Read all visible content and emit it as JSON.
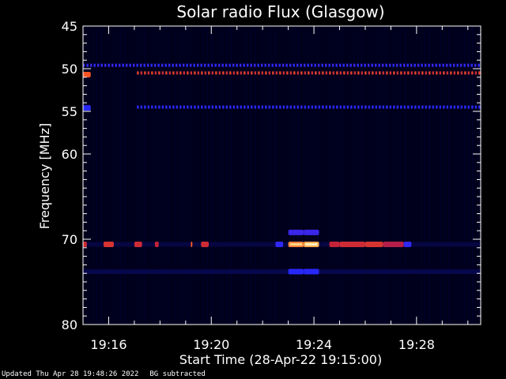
{
  "chart_data": {
    "type": "heatmap",
    "title": "Solar radio Flux (Glasgow)",
    "xlabel": "Start Time (28-Apr-22 19:15:00)",
    "ylabel": "Frequency [MHz]",
    "x_start_min": 0,
    "x_end_min": 15.5,
    "x_ticks": [
      {
        "min": 1,
        "label": "19:16"
      },
      {
        "min": 5,
        "label": "19:20"
      },
      {
        "min": 9,
        "label": "19:24"
      },
      {
        "min": 13,
        "label": "19:28"
      }
    ],
    "ylim": [
      45,
      80
    ],
    "y_ticks": [
      {
        "mhz": 45,
        "label": "45"
      },
      {
        "mhz": 50,
        "label": "50"
      },
      {
        "mhz": 55,
        "label": "55"
      },
      {
        "mhz": 60,
        "label": "60"
      },
      {
        "mhz": 70,
        "label": "70"
      },
      {
        "mhz": 80,
        "label": "80"
      }
    ],
    "background_color": "#00001c",
    "colormap": [
      "#000010",
      "#1010a0",
      "#2a2aff",
      "#6a1aa0",
      "#c0203a",
      "#ff5a20",
      "#ffb050",
      "#fff0c0"
    ],
    "bands": [
      {
        "name": "49.5 MHz dotted band",
        "mhz": 49.6,
        "dotted": true,
        "intensity": 0.3,
        "start": 0,
        "end": 15.5
      },
      {
        "name": "50.5 MHz band",
        "mhz": 50.5,
        "dotted": true,
        "intensity": 0.62,
        "start": 2.1,
        "end": 15.5
      },
      {
        "name": "54.5 MHz band",
        "mhz": 54.5,
        "dotted": true,
        "intensity": 0.3,
        "start": 2.1,
        "end": 15.5
      },
      {
        "name": "70.5 MHz band",
        "mhz": 70.6,
        "dotted": false,
        "intensity": 0.05,
        "start": 0,
        "end": 15.5
      },
      {
        "name": "74 MHz band",
        "mhz": 73.8,
        "dotted": false,
        "intensity": 0.06,
        "start": 0,
        "end": 15.5
      }
    ],
    "bursts": [
      {
        "start": 0.0,
        "end": 0.15,
        "mhz": 70.6,
        "intensity": 0.6
      },
      {
        "start": 0.8,
        "end": 1.2,
        "mhz": 70.6,
        "intensity": 0.62
      },
      {
        "start": 2.0,
        "end": 2.3,
        "mhz": 70.6,
        "intensity": 0.6
      },
      {
        "start": 2.8,
        "end": 2.95,
        "mhz": 70.6,
        "intensity": 0.58
      },
      {
        "start": 4.2,
        "end": 4.25,
        "mhz": 70.6,
        "intensity": 0.7
      },
      {
        "start": 4.6,
        "end": 4.9,
        "mhz": 70.6,
        "intensity": 0.6
      },
      {
        "start": 7.5,
        "end": 7.8,
        "mhz": 70.6,
        "intensity": 0.3
      },
      {
        "start": 8.0,
        "end": 8.6,
        "mhz": 70.6,
        "intensity": 0.78
      },
      {
        "start": 8.6,
        "end": 9.2,
        "mhz": 70.6,
        "intensity": 0.85
      },
      {
        "start": 9.6,
        "end": 10.0,
        "mhz": 70.6,
        "intensity": 0.58
      },
      {
        "start": 10.0,
        "end": 11.0,
        "mhz": 70.6,
        "intensity": 0.6
      },
      {
        "start": 11.0,
        "end": 11.7,
        "mhz": 70.6,
        "intensity": 0.62
      },
      {
        "start": 11.7,
        "end": 12.5,
        "mhz": 70.6,
        "intensity": 0.55
      },
      {
        "start": 12.5,
        "end": 12.8,
        "mhz": 70.6,
        "intensity": 0.3
      },
      {
        "start": 8.0,
        "end": 8.6,
        "mhz": 69.2,
        "intensity": 0.32
      },
      {
        "start": 8.6,
        "end": 9.2,
        "mhz": 69.2,
        "intensity": 0.32
      },
      {
        "start": 8.0,
        "end": 8.6,
        "mhz": 73.8,
        "intensity": 0.27
      },
      {
        "start": 8.6,
        "end": 9.2,
        "mhz": 73.8,
        "intensity": 0.27
      },
      {
        "start": 0.0,
        "end": 0.3,
        "mhz": 50.7,
        "intensity": 0.7
      },
      {
        "start": 0.0,
        "end": 0.3,
        "mhz": 54.6,
        "intensity": 0.28
      }
    ]
  },
  "footer": {
    "updated": "Updated Thu Apr 28 19:48:26 2022",
    "note": "BG subtracted"
  }
}
